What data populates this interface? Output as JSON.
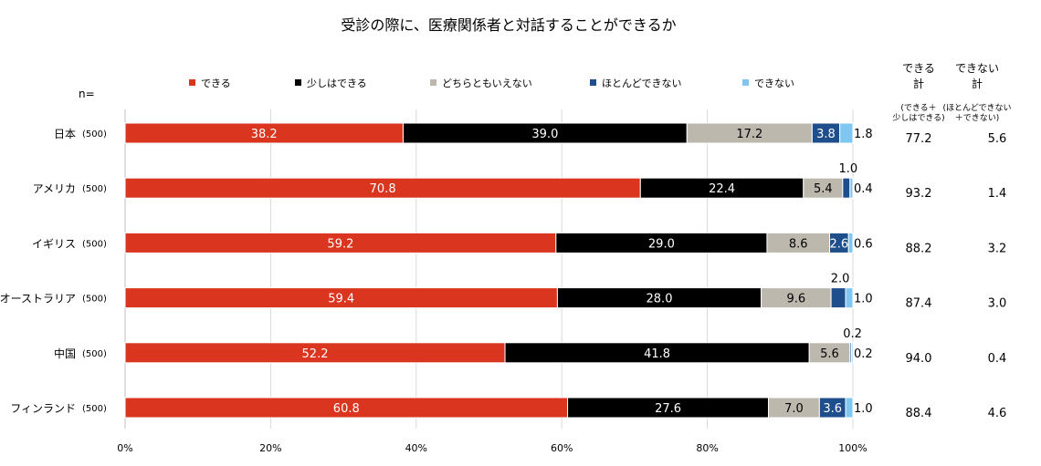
{
  "chart_data": {
    "type": "bar",
    "orientation": "horizontal",
    "stacked": true,
    "title": "受診の際に、医療関係者と対話することができるか",
    "n_label": "n=",
    "xlim": [
      0,
      100
    ],
    "x_ticks": [
      "0%",
      "20%",
      "40%",
      "60%",
      "80%",
      "100%"
    ],
    "grid": "vertical",
    "legend_position": "top",
    "categories": [
      "日本",
      "アメリカ",
      "イギリス",
      "オーストラリア",
      "中国",
      "フィンランド"
    ],
    "sample_sizes": [
      "(500)",
      "(500)",
      "(500)",
      "(500)",
      "(500)",
      "(500)"
    ],
    "series": [
      {
        "name": "できる",
        "color": "#d9351f",
        "label_color": "#ffffff",
        "values": [
          38.2,
          70.8,
          59.2,
          59.4,
          52.2,
          60.8
        ]
      },
      {
        "name": "少しはできる",
        "color": "#000000",
        "label_color": "#ffffff",
        "values": [
          39.0,
          22.4,
          29.0,
          28.0,
          41.8,
          27.6
        ]
      },
      {
        "name": "どちらともいえない",
        "color": "#bdb8ae",
        "label_color": "#000000",
        "values": [
          17.2,
          5.4,
          8.6,
          9.6,
          5.6,
          7.0
        ]
      },
      {
        "name": "ほとんどできない",
        "color": "#1f4e8c",
        "label_color": "#ffffff",
        "values": [
          3.8,
          1.0,
          2.6,
          2.0,
          0.2,
          3.6
        ]
      },
      {
        "name": "できない",
        "color": "#7fc6f0",
        "label_color": "#000000",
        "values": [
          1.8,
          0.4,
          0.6,
          1.0,
          0.2,
          1.0
        ]
      }
    ],
    "data_labels": [
      [
        "38.2",
        "39.0",
        "17.2",
        "3.8",
        "1.8"
      ],
      [
        "70.8",
        "22.4",
        "5.4",
        "1.0",
        "0.4"
      ],
      [
        "59.2",
        "29.0",
        "8.6",
        "2.6",
        "0.6"
      ],
      [
        "59.4",
        "28.0",
        "9.6",
        "2.0",
        "1.0"
      ],
      [
        "52.2",
        "41.8",
        "5.6",
        "0.2",
        "0.2"
      ],
      [
        "60.8",
        "27.6",
        "7.0",
        "3.6",
        "1.0"
      ]
    ],
    "totals": {
      "can": {
        "header": "できる\n計",
        "subheader": "(できる＋\n少しはできる)",
        "values": [
          "77.2",
          "93.2",
          "88.2",
          "87.4",
          "94.0",
          "88.4"
        ]
      },
      "cannot": {
        "header": "できない\n計",
        "subheader": "(ほとんどできない\n＋できない)",
        "values": [
          "5.6",
          "1.4",
          "3.2",
          "3.0",
          "0.4",
          "4.6"
        ]
      }
    }
  }
}
